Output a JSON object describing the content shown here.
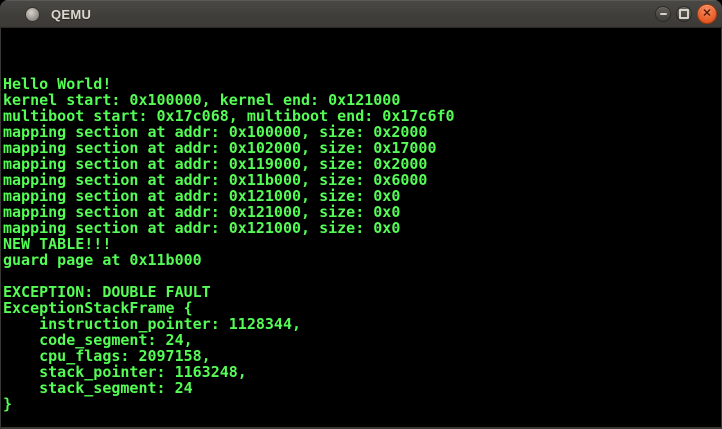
{
  "window": {
    "title": "QEMU",
    "controls": {
      "minimize_icon": "minus",
      "maximize_icon": "square",
      "close_icon": "x",
      "close_color": "#dd4814"
    }
  },
  "terminal": {
    "background": "#000000",
    "text_color": "#55fc55",
    "columns": 80,
    "rows": 25,
    "lines": [
      "",
      "",
      "",
      "Hello World!",
      "kernel start: 0x100000, kernel end: 0x121000",
      "multiboot start: 0x17c068, multiboot end: 0x17c6f0",
      "mapping section at addr: 0x100000, size: 0x2000",
      "mapping section at addr: 0x102000, size: 0x17000",
      "mapping section at addr: 0x119000, size: 0x2000",
      "mapping section at addr: 0x11b000, size: 0x6000",
      "mapping section at addr: 0x121000, size: 0x0",
      "mapping section at addr: 0x121000, size: 0x0",
      "mapping section at addr: 0x121000, size: 0x0",
      "NEW TABLE!!!",
      "guard page at 0x11b000",
      "",
      "EXCEPTION: DOUBLE FAULT",
      "ExceptionStackFrame {",
      "    instruction_pointer: 1128344,",
      "    code_segment: 24,",
      "    cpu_flags: 2097158,",
      "    stack_pointer: 1163248,",
      "    stack_segment: 24",
      "}",
      ""
    ]
  }
}
